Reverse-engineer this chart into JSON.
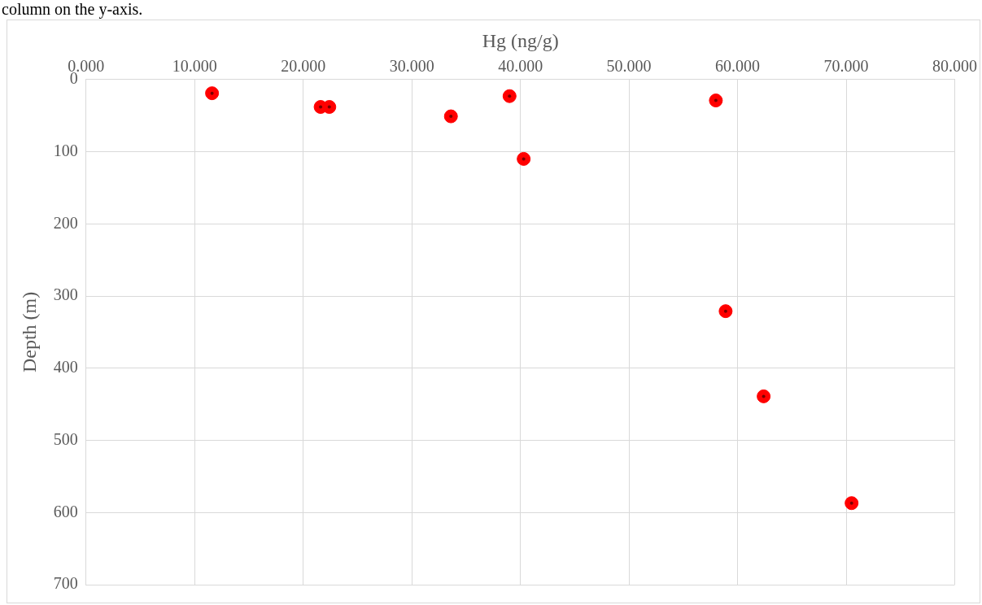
{
  "chart_data": {
    "type": "scatter",
    "xlabel": "Hg (ng/g)",
    "ylabel": "Depth (m)",
    "annotations": [
      "column on the y-axis."
    ],
    "x": [
      11.6,
      21.6,
      22.4,
      33.6,
      39.0,
      40.3,
      58.0,
      58.9,
      62.4,
      70.5
    ],
    "values": [
      19,
      38,
      38,
      51,
      23,
      110,
      29,
      321,
      439,
      587
    ],
    "color": "#ff0000",
    "marker": "circle",
    "grid": true,
    "xlim": [
      0,
      80
    ],
    "xticks": [
      {
        "value": 0,
        "label": "0.000"
      },
      {
        "value": 10,
        "label": "10.000"
      },
      {
        "value": 20,
        "label": "20.000"
      },
      {
        "value": 30,
        "label": "30.000"
      },
      {
        "value": 40,
        "label": "40.000"
      },
      {
        "value": 50,
        "label": "50.000"
      },
      {
        "value": 60,
        "label": "60.000"
      },
      {
        "value": 70,
        "label": "70.000"
      },
      {
        "value": 80,
        "label": "80.000"
      }
    ],
    "ylim": [
      700,
      0
    ],
    "yticks": [
      0,
      100,
      200,
      300,
      400,
      500,
      600,
      700
    ]
  }
}
